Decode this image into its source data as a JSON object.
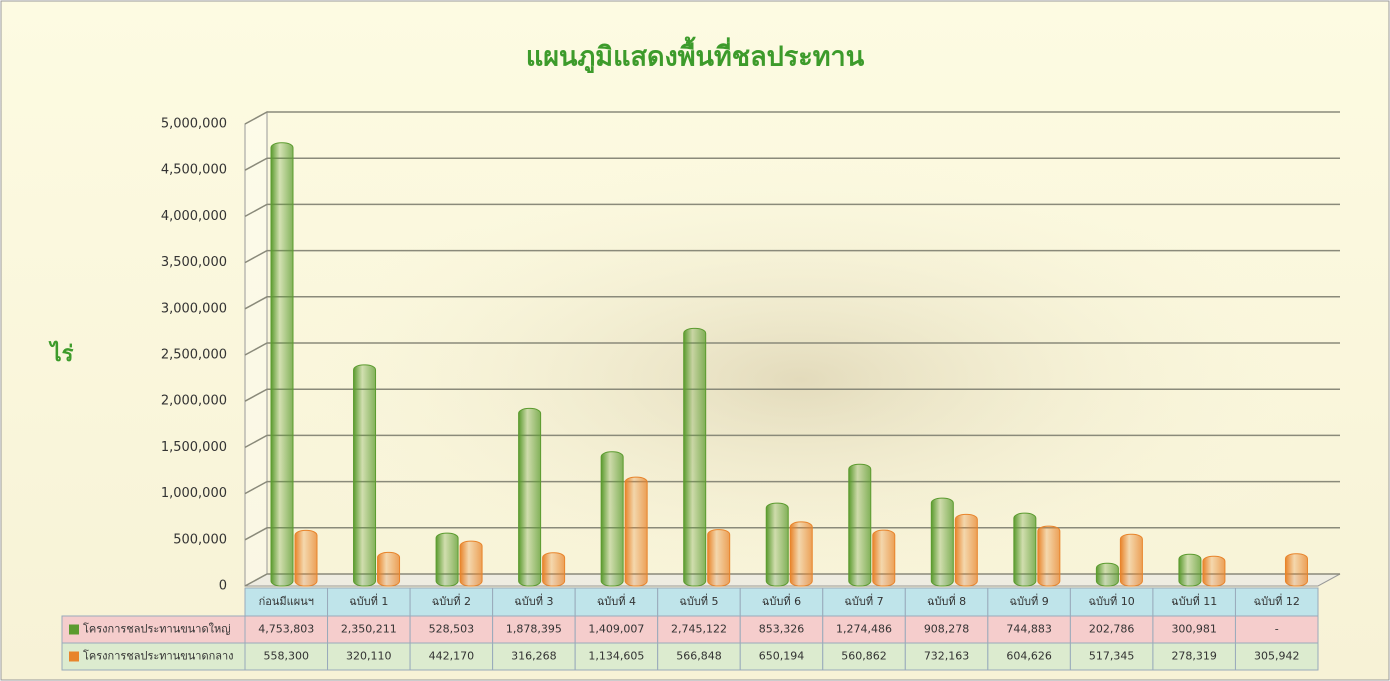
{
  "chart_data": {
    "type": "bar",
    "title": "แผนภูมิแสดงพื้นที่ชลประทาน",
    "y_label": "ไร่",
    "categories": [
      "ก่อนมีแผนฯ",
      "ฉบับที่ 1",
      "ฉบับที่ 2",
      "ฉบับที่ 3",
      "ฉบับที่ 4",
      "ฉบับที่ 5",
      "ฉบับที่ 6",
      "ฉบับที่ 7",
      "ฉบับที่ 8",
      "ฉบับที่ 9",
      "ฉบับที่ 10",
      "ฉบับที่ 11",
      "ฉบับที่ 12"
    ],
    "series": [
      {
        "name": "โครงการชลประทานขนาดใหญ่",
        "color": "#5b9b2f",
        "values": [
          4753803,
          2350211,
          528503,
          1878395,
          1409007,
          2745122,
          853326,
          1274486,
          908278,
          744883,
          202786,
          300981,
          null
        ],
        "value_labels": [
          "4,753,803",
          "2,350,211",
          "528,503",
          "1,878,395",
          "1,409,007",
          "2,745,122",
          "853,326",
          "1,274,486",
          "908,278",
          "744,883",
          "202,786",
          "300,981",
          "-"
        ]
      },
      {
        "name": "โครงการชลประทานขนาดกลาง",
        "color": "#e8842b",
        "values": [
          558300,
          320110,
          442170,
          316268,
          1134605,
          566848,
          650194,
          560862,
          732163,
          604626,
          517345,
          278319,
          305942
        ],
        "value_labels": [
          "558,300",
          "320,110",
          "442,170",
          "316,268",
          "1,134,605",
          "566,848",
          "650,194",
          "560,862",
          "732,163",
          "604,626",
          "517,345",
          "278,319",
          "305,942"
        ]
      }
    ],
    "ylim": [
      0,
      5000000
    ],
    "yticks": [
      {
        "value": 0,
        "label": "0"
      },
      {
        "value": 500000,
        "label": "500,000"
      },
      {
        "value": 1000000,
        "label": "1,000,000"
      },
      {
        "value": 1500000,
        "label": "1,500,000"
      },
      {
        "value": 2000000,
        "label": "2,000,000"
      },
      {
        "value": 2500000,
        "label": "2,500,000"
      },
      {
        "value": 3000000,
        "label": "3,000,000"
      },
      {
        "value": 3500000,
        "label": "3,500,000"
      },
      {
        "value": 4000000,
        "label": "4,000,000"
      },
      {
        "value": 4500000,
        "label": "4,500,000"
      },
      {
        "value": 5000000,
        "label": "5,000,000"
      }
    ],
    "grid": true
  }
}
